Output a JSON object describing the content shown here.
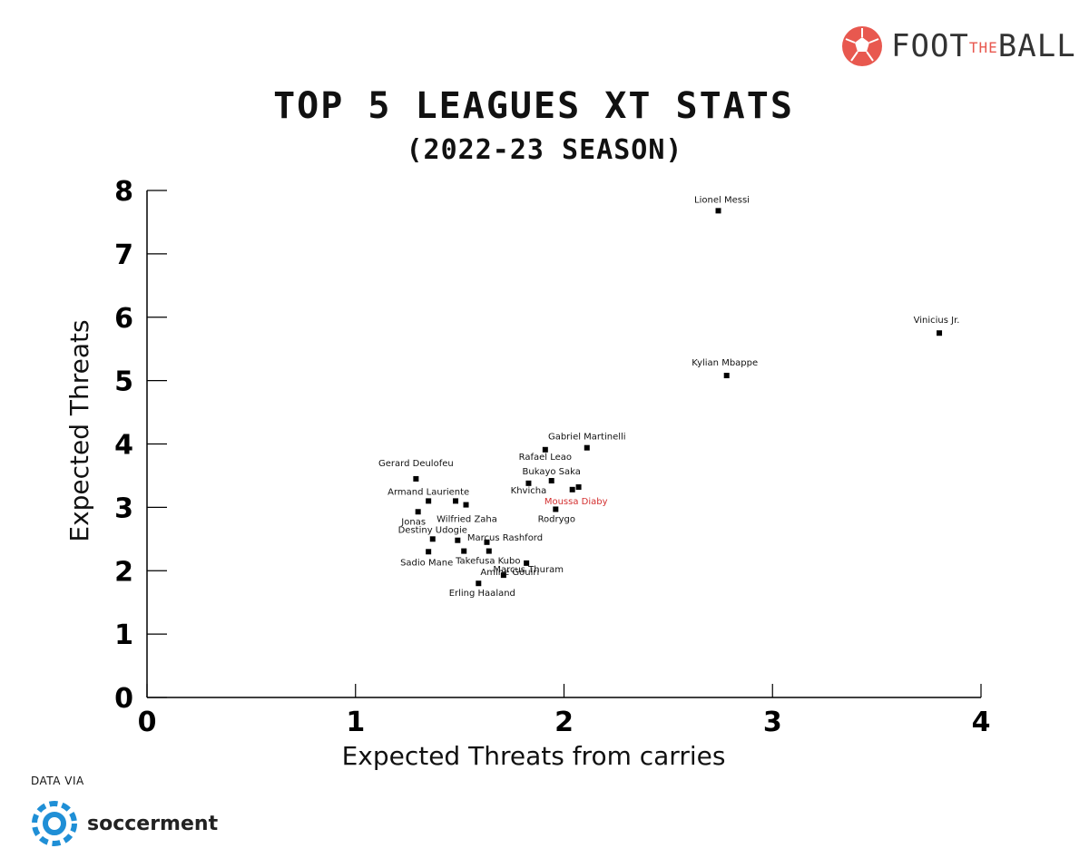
{
  "brand": {
    "logo_main": "FOOT",
    "logo_the": "THE",
    "logo_end": "BALL",
    "colors": {
      "ball": "#e8584f",
      "text": "#333333"
    }
  },
  "source": {
    "caption": "DATA VIA",
    "name": "soccerment",
    "color": "#1f8fd6"
  },
  "chart_data": {
    "type": "scatter",
    "title": "TOP 5 LEAGUES XT STATS",
    "subtitle": "(2022-23 SEASON)",
    "xlabel": "Expected Threats from carries",
    "ylabel": "Expected Threats",
    "xlim": [
      0,
      4
    ],
    "ylim": [
      0,
      8
    ],
    "xticks": [
      0,
      1,
      2,
      3,
      4
    ],
    "yticks": [
      0,
      1,
      2,
      3,
      4,
      5,
      6,
      7,
      8
    ],
    "highlight_color": "#d32f2f",
    "points": [
      {
        "name": "Lionel Messi",
        "x": 2.74,
        "y": 7.68
      },
      {
        "name": "Vinicius Jr.",
        "x": 3.8,
        "y": 5.75
      },
      {
        "name": "Kylian Mbappe",
        "x": 2.78,
        "y": 5.08
      },
      {
        "name": "Gabriel Martinelli",
        "x": 2.11,
        "y": 3.94
      },
      {
        "name": "Rafael Leao",
        "x": 1.91,
        "y": 3.91
      },
      {
        "name": "Bukayo Saka",
        "x": 1.94,
        "y": 3.42
      },
      {
        "name": "Khvicha",
        "x": 1.83,
        "y": 3.38
      },
      {
        "name": "Moussa Diaby",
        "x": 2.04,
        "y": 3.28,
        "highlight": true
      },
      {
        "name": "Rodrygo",
        "x": 1.96,
        "y": 2.97
      },
      {
        "name": "Gerard Deulofeu",
        "x": 1.29,
        "y": 3.45
      },
      {
        "name": "Armand Lauriente",
        "x": 1.35,
        "y": 3.1
      },
      {
        "name": "Wilfried Zaha",
        "x": 1.53,
        "y": 3.04
      },
      {
        "name": "Jonas",
        "x": 1.3,
        "y": 2.93
      },
      {
        "name": "Destiny Udogie",
        "x": 1.37,
        "y": 2.5
      },
      {
        "name": "Marcus Rashford",
        "x": 1.63,
        "y": 2.45
      },
      {
        "name": "Sadio Mane",
        "x": 1.35,
        "y": 2.3
      },
      {
        "name": "Takefusa Kubo",
        "x": 1.64,
        "y": 2.31
      },
      {
        "name": "Marcus Thuram",
        "x": 1.82,
        "y": 2.12
      },
      {
        "name": "Amine Gouiri",
        "x": 1.71,
        "y": 1.93
      },
      {
        "name": "Erling Haaland",
        "x": 1.59,
        "y": 1.8
      }
    ],
    "unlabeled_points": [
      {
        "x": 1.48,
        "y": 3.1
      },
      {
        "x": 1.49,
        "y": 2.48
      },
      {
        "x": 1.52,
        "y": 2.31
      },
      {
        "x": 2.07,
        "y": 3.32
      }
    ]
  }
}
